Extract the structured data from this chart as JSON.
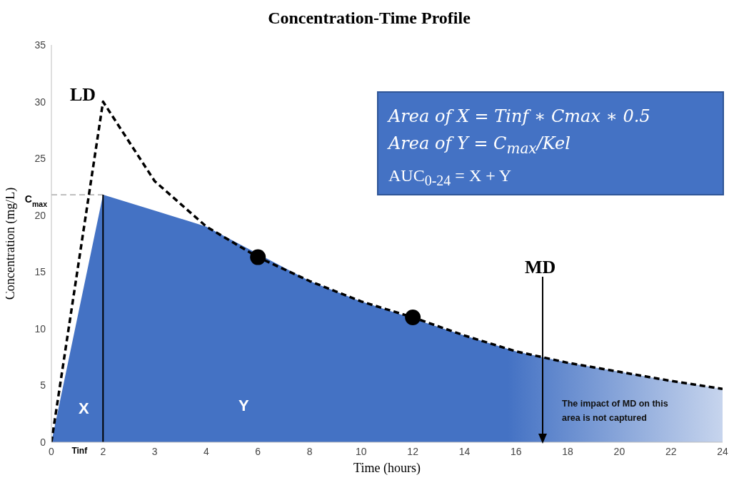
{
  "chart_data": {
    "type": "line",
    "title": "Concentration-Time Profile",
    "xlabel": "Time (hours)",
    "ylabel": "Concentration (mg/L)",
    "categories": [
      "0",
      "2",
      "3",
      "4",
      "6",
      "8",
      "10",
      "12",
      "14",
      "16",
      "18",
      "20",
      "22",
      "24"
    ],
    "series": [
      {
        "type": "area",
        "color": "#4472c4",
        "values": [
          0,
          21.8,
          20.4,
          19.0,
          null,
          14.2,
          12.4,
          null,
          9.4,
          8.0,
          7.0,
          6.2,
          5.4,
          4.7
        ]
      },
      {
        "color": "#000000",
        "line_style": "dashed",
        "marker": "none",
        "values": [
          0,
          30.0,
          23.0,
          19.0,
          16.3,
          14.2,
          12.4,
          11.0,
          9.4,
          8.0,
          7.0,
          6.2,
          5.4,
          4.7
        ]
      },
      {
        "type": "scatter",
        "color": "#000000",
        "marker": "circle",
        "values": [
          null,
          null,
          null,
          null,
          16.3,
          null,
          null,
          11.0,
          null,
          null,
          null,
          null,
          null,
          null
        ]
      }
    ],
    "ylim": [
      0,
      35
    ],
    "yticks": [
      0,
      5,
      10,
      15,
      20,
      25,
      30,
      35
    ],
    "grid": false,
    "legend": false,
    "ref_lines": [
      {
        "axis": "y",
        "value": 21.8,
        "label": "C$_{max}$",
        "color": "#808080",
        "line_style": "dashed"
      },
      {
        "axis": "x",
        "value": "2",
        "label": "Tinf",
        "color": "#000000",
        "line_style": "solid"
      }
    ],
    "annotations": [
      "LD",
      "MD",
      "X",
      "Y",
      "Area of X = Tinf ∗ Cmax ∗ 0.5",
      "Area of Y = C$_{max}$/Kel",
      "AUC$_{0-24}$ = X + Y",
      "The impact of MD on this area is not captured"
    ]
  }
}
